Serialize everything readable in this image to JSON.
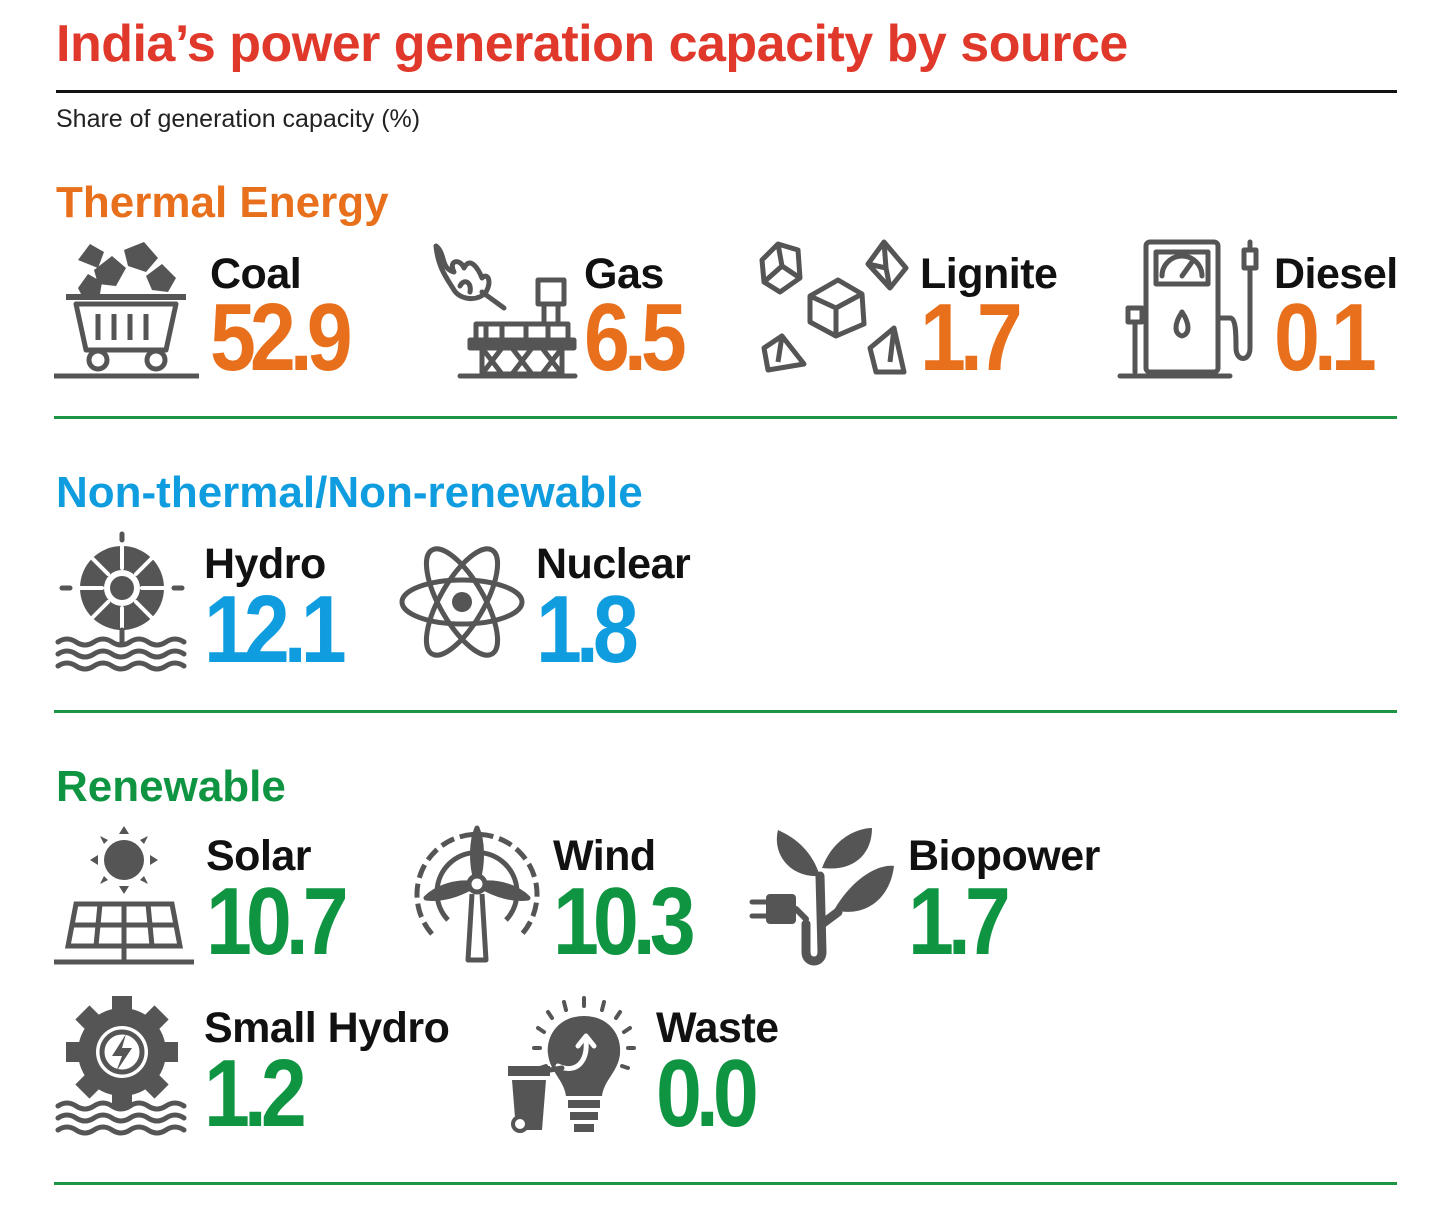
{
  "title": "India’s power generation capacity by source",
  "subtitle": "Share of generation capacity (%)",
  "colors": {
    "title": "#e0392b",
    "thermal": "#e8701c",
    "non_thermal": "#109ddf",
    "renewable": "#0f9442",
    "icon": "#555555"
  },
  "chart_data": {
    "type": "table",
    "title": "India’s power generation capacity by source",
    "subtitle": "Share of generation capacity (%)",
    "groups": [
      {
        "name": "Thermal Energy",
        "items": [
          {
            "source": "Coal",
            "value": 52.9,
            "display": "52.9",
            "icon": "coal-cart-icon"
          },
          {
            "source": "Gas",
            "value": 6.5,
            "display": "6.5",
            "icon": "gas-rig-icon"
          },
          {
            "source": "Lignite",
            "value": 1.7,
            "display": "1.7",
            "icon": "lignite-rocks-icon"
          },
          {
            "source": "Diesel",
            "value": 0.1,
            "display": "0.1",
            "icon": "fuel-pump-icon"
          }
        ]
      },
      {
        "name": "Non-thermal/Non-renewable",
        "items": [
          {
            "source": "Hydro",
            "value": 12.1,
            "display": "12.1",
            "icon": "hydro-turbine-icon"
          },
          {
            "source": "Nuclear",
            "value": 1.8,
            "display": "1.8",
            "icon": "atom-icon"
          }
        ]
      },
      {
        "name": "Renewable",
        "items": [
          {
            "source": "Solar",
            "value": 10.7,
            "display": "10.7",
            "icon": "solar-panel-icon"
          },
          {
            "source": "Wind",
            "value": 10.3,
            "display": "10.3",
            "icon": "wind-turbine-icon"
          },
          {
            "source": "Biopower",
            "value": 1.7,
            "display": "1.7",
            "icon": "plant-plug-icon"
          },
          {
            "source": "Small Hydro",
            "value": 1.2,
            "display": "1.2",
            "icon": "gear-bolt-icon"
          },
          {
            "source": "Waste",
            "value": 0.0,
            "display": "0.0",
            "icon": "bulb-bin-icon"
          }
        ]
      }
    ]
  }
}
